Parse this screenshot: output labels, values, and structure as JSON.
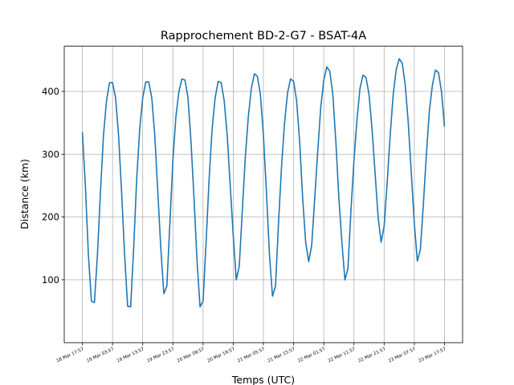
{
  "chart_data": {
    "type": "line",
    "title": "Rapprochement BD-2-G7 - BSAT-4A",
    "xlabel": "Temps (UTC)",
    "ylabel": "Distance (km)",
    "x": [
      0,
      1,
      2,
      3,
      4,
      5,
      6,
      7,
      8,
      9,
      10,
      11,
      12,
      13,
      14,
      15,
      16,
      17,
      18,
      19,
      20,
      21,
      22,
      23,
      24,
      25,
      26,
      27,
      28,
      29,
      30,
      31,
      32,
      33,
      34,
      35,
      36,
      37,
      38,
      39,
      40,
      41,
      42,
      43,
      44,
      45,
      46,
      47,
      48,
      49,
      50,
      51,
      52,
      53,
      54,
      55,
      56,
      57,
      58,
      59,
      60,
      61,
      62,
      63,
      64,
      65,
      66,
      67,
      68,
      69,
      70,
      71,
      72,
      73,
      74,
      75,
      76,
      77,
      78,
      79,
      80,
      81,
      82,
      83,
      84,
      85,
      86,
      87,
      88,
      89,
      90,
      91,
      92,
      93,
      94,
      95,
      96,
      97,
      98,
      99,
      100,
      101,
      102,
      103,
      104,
      105,
      106,
      107,
      108,
      109,
      110,
      111,
      112,
      113,
      114,
      115,
      116,
      117,
      118,
      119,
      120
    ],
    "series": [
      {
        "color": "#1f77b4",
        "values": [
          335,
          250,
          140,
          66,
          64,
          140,
          240,
          330,
          385,
          414,
          414,
          390,
          330,
          240,
          140,
          58,
          57,
          150,
          260,
          340,
          390,
          415,
          415,
          390,
          330,
          240,
          150,
          78,
          90,
          190,
          290,
          360,
          400,
          420,
          418,
          390,
          320,
          230,
          130,
          57,
          66,
          160,
          260,
          340,
          390,
          416,
          414,
          385,
          330,
          250,
          170,
          100,
          122,
          210,
          295,
          360,
          405,
          428,
          424,
          395,
          330,
          240,
          140,
          74,
          90,
          190,
          280,
          350,
          398,
          420,
          416,
          385,
          320,
          230,
          160,
          129,
          155,
          230,
          305,
          375,
          418,
          439,
          432,
          395,
          320,
          230,
          160,
          100,
          118,
          210,
          290,
          355,
          405,
          426,
          422,
          395,
          340,
          270,
          200,
          160,
          185,
          255,
          330,
          395,
          435,
          452,
          445,
          410,
          350,
          270,
          190,
          130,
          148,
          220,
          300,
          370,
          410,
          434,
          430,
          400,
          344
        ]
      }
    ],
    "xlim": [
      -6,
      126
    ],
    "xticks": [
      {
        "value": 0,
        "label": "18 Mar 17:57"
      },
      {
        "value": 10,
        "label": "19 Mar 03:57"
      },
      {
        "value": 20,
        "label": "19 Mar 13:57"
      },
      {
        "value": 30,
        "label": "19 Mar 23:57"
      },
      {
        "value": 40,
        "label": "20 Mar 09:57"
      },
      {
        "value": 50,
        "label": "20 Mar 19:57"
      },
      {
        "value": 60,
        "label": "21 Mar 05:57"
      },
      {
        "value": 70,
        "label": "21 Mar 15:57"
      },
      {
        "value": 80,
        "label": "22 Mar 01:57"
      },
      {
        "value": 90,
        "label": "22 Mar 11:57"
      },
      {
        "value": 100,
        "label": "22 Mar 21:57"
      },
      {
        "value": 110,
        "label": "23 Mar 07:57"
      },
      {
        "value": 120,
        "label": "23 Mar 17:57"
      }
    ],
    "ylim": [
      0,
      472
    ],
    "yticks": [
      100,
      200,
      300,
      400
    ],
    "grid": true
  }
}
